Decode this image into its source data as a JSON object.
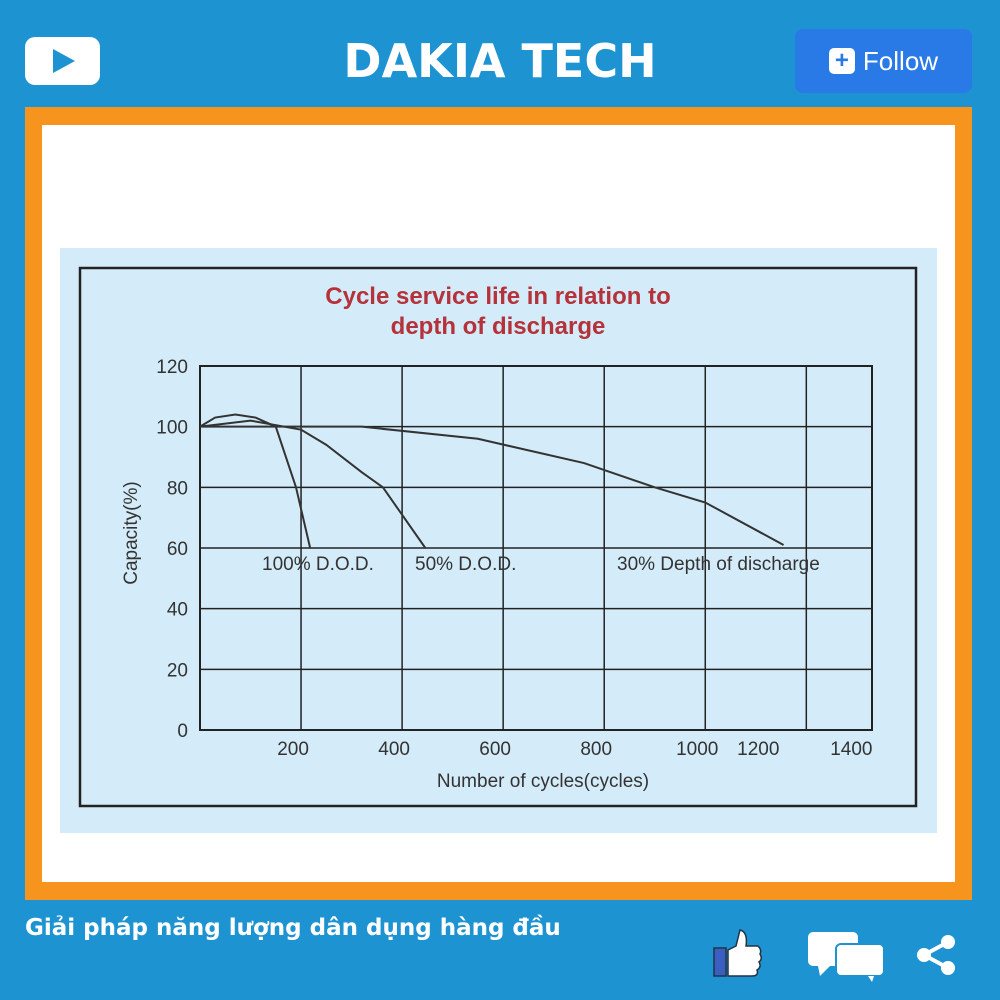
{
  "header": {
    "brand": "DAKIA TECH",
    "follow_label": "Follow",
    "play_icon": "youtube-play-icon"
  },
  "footer": {
    "caption": "Giải pháp năng lượng dân dụng hàng đầu",
    "icons": [
      "thumbs-up-icon",
      "comment-icon",
      "share-icon"
    ]
  },
  "colors": {
    "background": "#1e93d2",
    "frame": "#f7941d",
    "chart_bg": "#d4ecf9",
    "title": "#b5323a",
    "follow": "#2979e6"
  },
  "chart_data": {
    "type": "line",
    "title_line1": "Cycle service life in relation to",
    "title_line2": "depth of discharge",
    "xlabel": "Number of cycles(cycles)",
    "ylabel": "Capacity(%)",
    "xlim": [
      0,
      1330
    ],
    "ylim": [
      0,
      120
    ],
    "xticks": [
      200,
      400,
      600,
      800,
      1000,
      1200,
      1400
    ],
    "yticks": [
      0,
      20,
      40,
      60,
      80,
      100,
      120
    ],
    "grid": true,
    "series": [
      {
        "name": "100% D.O.D.",
        "x": [
          0,
          30,
          70,
          110,
          150,
          190,
          218
        ],
        "y": [
          100,
          103,
          104,
          103,
          100,
          80,
          60
        ]
      },
      {
        "name": "50% D.O.D.",
        "x": [
          0,
          100,
          200,
          250,
          320,
          362,
          446
        ],
        "y": [
          100,
          102,
          99,
          94,
          85,
          80,
          60
        ]
      },
      {
        "name": "30% Depth of discharge",
        "x": [
          0,
          200,
          320,
          550,
          760,
          900,
          1000,
          1155
        ],
        "y": [
          100,
          100,
          100,
          96,
          88,
          80,
          75,
          61
        ]
      }
    ]
  }
}
